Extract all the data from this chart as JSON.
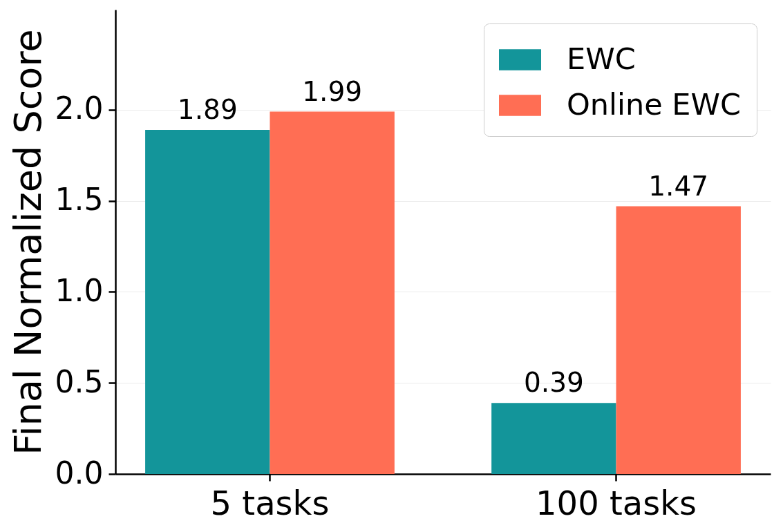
{
  "chart_data": {
    "type": "bar",
    "ylabel": "Final Normalized Score",
    "categories": [
      "5 tasks",
      "100 tasks"
    ],
    "series": [
      {
        "name": "EWC",
        "color": "#13959a",
        "values": [
          1.89,
          0.39
        ]
      },
      {
        "name": "Online EWC",
        "color": "#ff6e54",
        "values": [
          1.99,
          1.47
        ]
      }
    ],
    "ylim": [
      0,
      2.55
    ],
    "yticks": [
      {
        "value": 0,
        "label": "0.0"
      },
      {
        "value": 0.5,
        "label": "0.5"
      },
      {
        "value": 1,
        "label": "1.0"
      },
      {
        "value": 1.5,
        "label": "1.5"
      },
      {
        "value": 2,
        "label": "2.0"
      }
    ],
    "grid": "y",
    "legend": "top right",
    "data_labels": true
  }
}
